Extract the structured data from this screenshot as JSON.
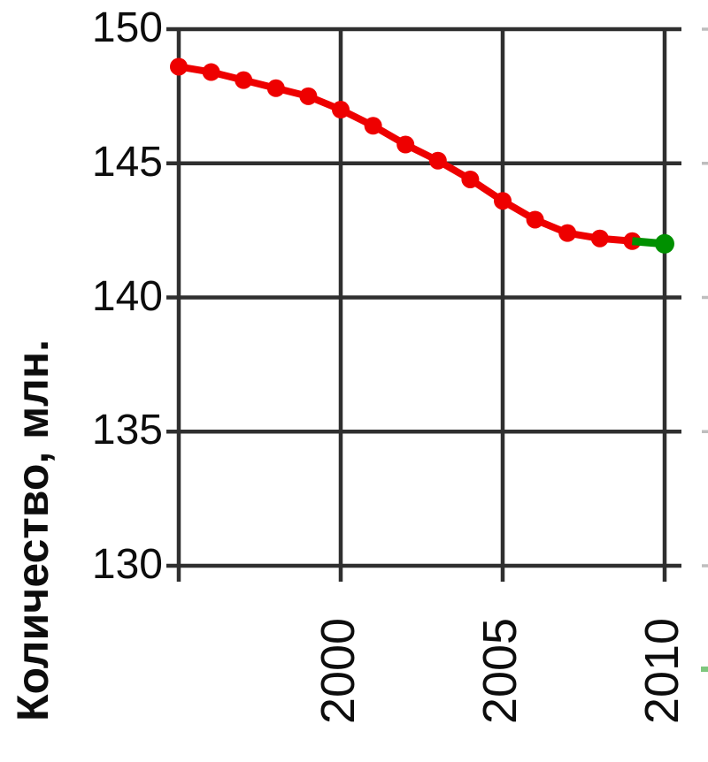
{
  "chart_data": {
    "type": "line",
    "title": "",
    "ylabel": "Количество, млн.",
    "xlabel": "",
    "xlim": [
      1995,
      2010
    ],
    "ylim": [
      130,
      150
    ],
    "grid": true,
    "legend": "none",
    "y_tick_values": [
      150,
      145,
      140,
      135,
      130
    ],
    "y_tick_labels": [
      "150",
      "145",
      "140",
      "135",
      "130"
    ],
    "x_tick_years": [
      2000,
      2005,
      2010
    ],
    "x_tick_labels": [
      "2000",
      "2005",
      "2010"
    ],
    "colors": {
      "grid": "#2f2f2f",
      "text": "#0d0d0d",
      "series_red": "#ee0000",
      "series_green": "#009000"
    },
    "series": [
      {
        "name": "red-declining-series",
        "color": "#ee0000",
        "markers": "all",
        "line_width": 8,
        "marker_radius": 10,
        "x": [
          1995,
          1996,
          1997,
          1998,
          1999,
          2000,
          2001,
          2002,
          2003,
          2004,
          2005,
          2006,
          2007,
          2008,
          2009
        ],
        "values": [
          148.6,
          148.4,
          148.1,
          147.8,
          147.5,
          147.0,
          146.4,
          145.7,
          145.1,
          144.4,
          143.6,
          142.9,
          142.4,
          142.2,
          142.1
        ]
      },
      {
        "name": "green-final-segment",
        "color": "#009000",
        "markers": "last",
        "line_width": 9,
        "marker_radius": 11,
        "x": [
          2009,
          2010
        ],
        "values": [
          142.1,
          142.0
        ]
      }
    ],
    "artifacts": {
      "right_edge_tick_values": [
        150,
        145,
        140,
        135,
        130
      ],
      "right_edge_green_mark_y": 757
    }
  }
}
